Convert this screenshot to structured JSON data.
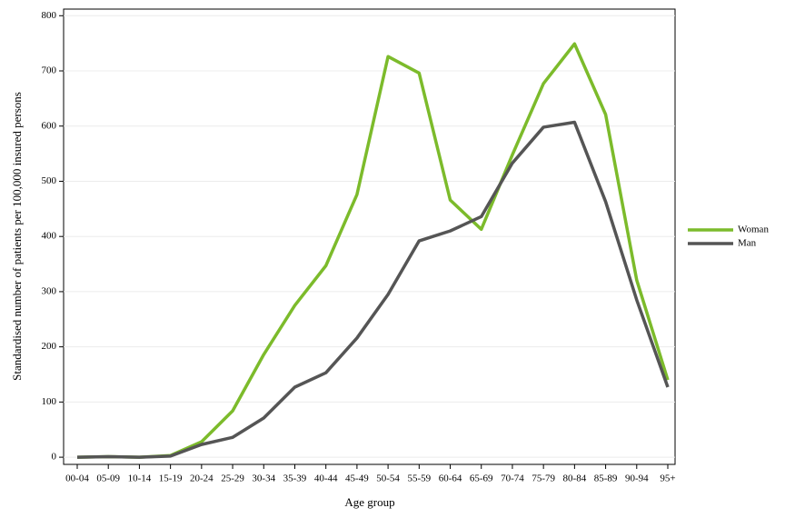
{
  "chart_data": {
    "type": "line",
    "x_label": "Age group",
    "y_label": "Standardised number of patients per 100,000 insured persons",
    "categories": [
      "00-04",
      "05-09",
      "10-14",
      "15-19",
      "20-24",
      "25-29",
      "30-34",
      "35-39",
      "40-44",
      "45-49",
      "50-54",
      "55-59",
      "60-64",
      "65-69",
      "70-74",
      "75-79",
      "80-84",
      "85-89",
      "90-94",
      "95+"
    ],
    "series": [
      {
        "name": "Woman",
        "color": "#7cbb2b",
        "values": [
          0,
          1,
          0,
          3,
          28,
          84,
          186,
          275,
          347,
          476,
          726,
          696,
          466,
          413,
          548,
          677,
          749,
          621,
          321,
          140
        ]
      },
      {
        "name": "Man",
        "color": "#555555",
        "values": [
          0,
          1,
          0,
          2,
          23,
          36,
          71,
          127,
          153,
          216,
          295,
          392,
          410,
          436,
          533,
          598,
          607,
          463,
          285,
          127
        ]
      }
    ],
    "ylim": [
      -13,
      812
    ],
    "yticks": [
      0,
      100,
      200,
      300,
      400,
      500,
      600,
      700,
      800
    ],
    "grid": true,
    "legend": "right"
  }
}
